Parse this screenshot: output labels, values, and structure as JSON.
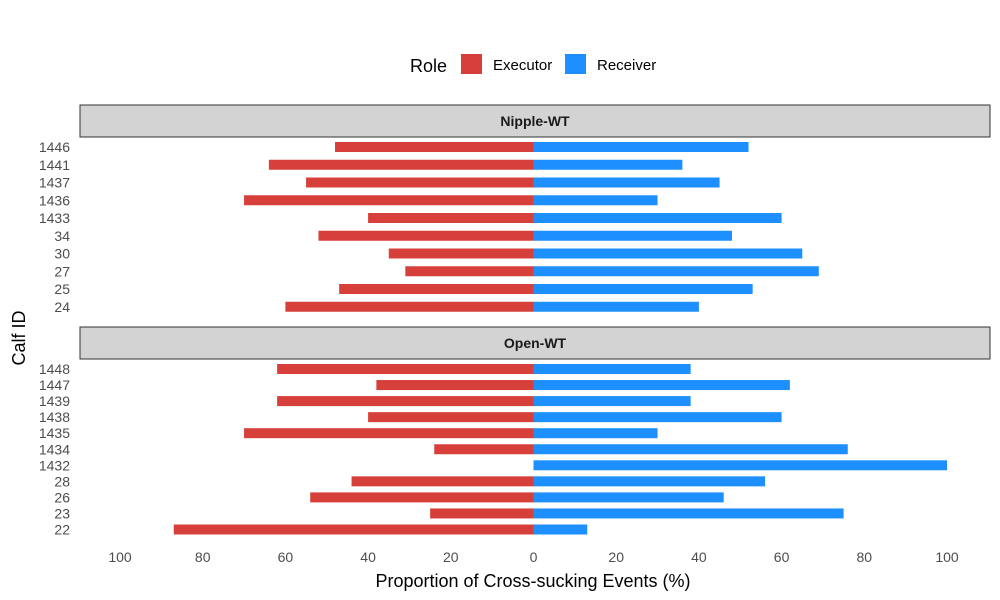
{
  "chart_data": {
    "type": "bar",
    "orientation": "horizontal-diverging",
    "title": "",
    "xlabel": "Proportion of Cross-sucking Events (%)",
    "ylabel": "Calf ID",
    "xlim": [
      -100,
      100
    ],
    "x_ticks": [
      -100,
      -80,
      -60,
      -40,
      -20,
      0,
      20,
      40,
      60,
      80,
      100
    ],
    "x_tick_labels": [
      "100",
      "80",
      "60",
      "40",
      "20",
      "0",
      "20",
      "40",
      "60",
      "80",
      "100"
    ],
    "legend": {
      "title": "Role",
      "position": "top",
      "items": [
        {
          "name": "Executor",
          "color": "#D7403A"
        },
        {
          "name": "Receiver",
          "color": "#1E8FFF"
        }
      ]
    },
    "facets": [
      {
        "label": "Nipple-WT",
        "categories": [
          "1446",
          "1441",
          "1437",
          "1436",
          "1433",
          "34",
          "30",
          "27",
          "25",
          "24"
        ],
        "series": [
          {
            "name": "Executor",
            "values": [
              48,
              64,
              55,
              70,
              40,
              52,
              35,
              31,
              47,
              60
            ]
          },
          {
            "name": "Receiver",
            "values": [
              52,
              36,
              45,
              30,
              60,
              48,
              65,
              69,
              53,
              40
            ]
          }
        ]
      },
      {
        "label": "Open-WT",
        "categories": [
          "1448",
          "1447",
          "1439",
          "1438",
          "1435",
          "1434",
          "1432",
          "28",
          "26",
          "23",
          "22"
        ],
        "series": [
          {
            "name": "Executor",
            "values": [
              62,
              38,
              62,
              40,
              70,
              24,
              0,
              44,
              54,
              25,
              87
            ]
          },
          {
            "name": "Receiver",
            "values": [
              38,
              62,
              38,
              60,
              30,
              76,
              100,
              56,
              46,
              75,
              13
            ]
          }
        ]
      }
    ]
  }
}
